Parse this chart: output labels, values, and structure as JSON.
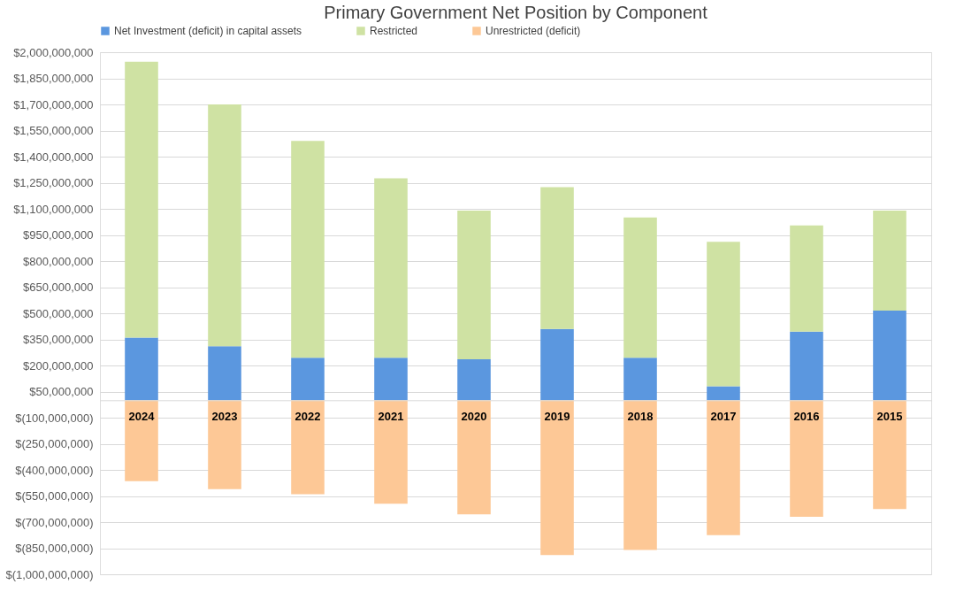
{
  "chart_data": {
    "type": "bar",
    "title": "Primary Government Net Position by Component",
    "categories": [
      "2024",
      "2023",
      "2022",
      "2021",
      "2020",
      "2019",
      "2018",
      "2017",
      "2016",
      "2015"
    ],
    "stacked": true,
    "series": [
      {
        "name": "Net Investment (deficit) in capital assets",
        "color": "#5b97df",
        "values": [
          360000000,
          310000000,
          245000000,
          245000000,
          235000000,
          410000000,
          245000000,
          80000000,
          395000000,
          515000000
        ]
      },
      {
        "name": "Restricted",
        "color": "#cfe2a3",
        "values": [
          1585000000,
          1390000000,
          1245000000,
          1030000000,
          855000000,
          815000000,
          805000000,
          830000000,
          610000000,
          575000000
        ]
      },
      {
        "name": "Unrestricted (deficit)",
        "color": "#fdc896",
        "values": [
          -465000000,
          -510000000,
          -540000000,
          -595000000,
          -655000000,
          -890000000,
          -860000000,
          -775000000,
          -670000000,
          -625000000
        ]
      }
    ],
    "ylim": [
      -1000000000,
      2000000000
    ],
    "yticks": [
      {
        "value": -1000000000,
        "label": "$(1,000,000,000)"
      },
      {
        "value": -850000000,
        "label": "$(850,000,000)"
      },
      {
        "value": -700000000,
        "label": "$(700,000,000)"
      },
      {
        "value": -550000000,
        "label": "$(550,000,000)"
      },
      {
        "value": -400000000,
        "label": "$(400,000,000)"
      },
      {
        "value": -250000000,
        "label": "$(250,000,000)"
      },
      {
        "value": -100000000,
        "label": "$(100,000,000)"
      },
      {
        "value": 50000000,
        "label": "$50,000,000"
      },
      {
        "value": 200000000,
        "label": "$200,000,000"
      },
      {
        "value": 350000000,
        "label": "$350,000,000"
      },
      {
        "value": 500000000,
        "label": "$500,000,000"
      },
      {
        "value": 650000000,
        "label": "$650,000,000"
      },
      {
        "value": 800000000,
        "label": "$800,000,000"
      },
      {
        "value": 950000000,
        "label": "$950,000,000"
      },
      {
        "value": 1100000000,
        "label": "$1,100,000,000"
      },
      {
        "value": 1250000000,
        "label": "$1,250,000,000"
      },
      {
        "value": 1400000000,
        "label": "$1,400,000,000"
      },
      {
        "value": 1550000000,
        "label": "$1,550,000,000"
      },
      {
        "value": 1700000000,
        "label": "$1,700,000,000"
      },
      {
        "value": 1850000000,
        "label": "$1,850,000,000"
      },
      {
        "value": 2000000000,
        "label": "$2,000,000,000"
      }
    ],
    "grid": "y",
    "legend": "top"
  }
}
